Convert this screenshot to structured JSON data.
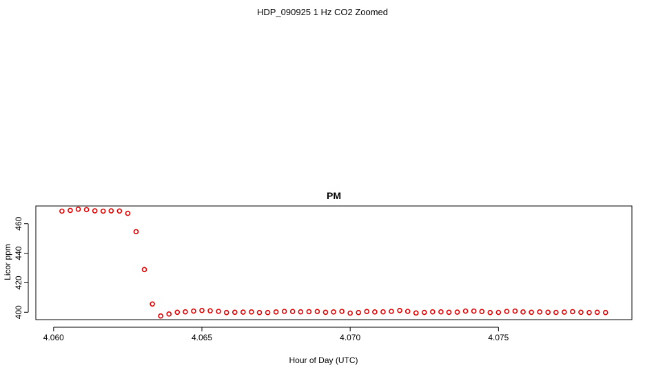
{
  "figure_title": "HDP_090925  1 Hz CO2 Zoomed",
  "chart_data": {
    "type": "scatter",
    "title": "PM",
    "xlabel": "Hour of Day (UTC)",
    "ylabel": "Licor ppm",
    "xlim": [
      4.0594,
      4.0795
    ],
    "ylim": [
      395,
      472
    ],
    "x_ticks": [
      4.06,
      4.065,
      4.07,
      4.075
    ],
    "x_tick_labels": [
      "4.060",
      "4.065",
      "4.070",
      "4.075"
    ],
    "y_ticks": [
      400,
      420,
      440,
      460
    ],
    "y_tick_labels": [
      "400",
      "420",
      "440",
      "460"
    ],
    "grid": false,
    "marker": "open-circle",
    "marker_color": "#e00000",
    "x": [
      4.06028,
      4.06056,
      4.06083,
      4.06111,
      4.06139,
      4.06167,
      4.06194,
      4.06222,
      4.0625,
      4.06278,
      4.06306,
      4.06333,
      4.06361,
      4.06389,
      4.06417,
      4.06444,
      4.06472,
      4.065,
      4.06528,
      4.06556,
      4.06583,
      4.06611,
      4.06639,
      4.06667,
      4.06694,
      4.06722,
      4.0675,
      4.06778,
      4.06806,
      4.06833,
      4.06861,
      4.06889,
      4.06917,
      4.06944,
      4.06972,
      4.07,
      4.07028,
      4.07056,
      4.07083,
      4.07111,
      4.07139,
      4.07167,
      4.07194,
      4.07222,
      4.0725,
      4.07278,
      4.07306,
      4.07333,
      4.07361,
      4.07389,
      4.07417,
      4.07444,
      4.07472,
      4.075,
      4.07528,
      4.07556,
      4.07583,
      4.07611,
      4.07639,
      4.07667,
      4.07694,
      4.07722,
      4.0775,
      4.07778,
      4.07806,
      4.07833,
      4.07861
    ],
    "y": [
      468.5,
      469.0,
      469.8,
      469.5,
      468.7,
      468.5,
      468.7,
      468.6,
      467.0,
      454.6,
      428.9,
      405.6,
      397.5,
      398.8,
      400.0,
      400.3,
      400.8,
      401.2,
      401.0,
      400.6,
      399.8,
      400.0,
      400.1,
      400.2,
      399.8,
      399.8,
      400.2,
      400.6,
      400.5,
      400.3,
      400.4,
      400.5,
      400.0,
      400.2,
      400.6,
      399.4,
      399.8,
      400.5,
      400.2,
      400.3,
      400.6,
      401.2,
      400.6,
      399.5,
      399.9,
      400.3,
      400.3,
      400.0,
      400.1,
      400.8,
      400.8,
      400.5,
      399.8,
      399.9,
      400.6,
      400.8,
      400.2,
      400.0,
      400.2,
      400.0,
      399.9,
      400.1,
      400.4,
      400.0,
      399.8,
      400.0,
      399.8
    ]
  }
}
